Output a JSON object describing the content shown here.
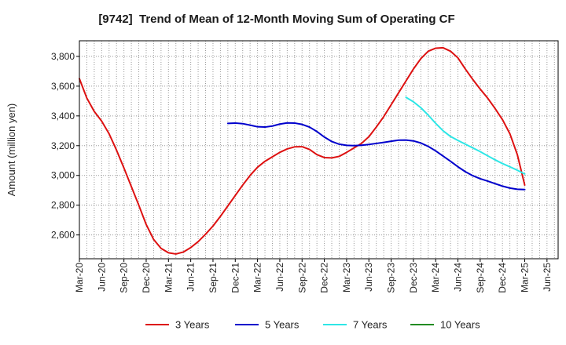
{
  "chart_data": {
    "type": "line",
    "title": "[9742]  Trend of Mean of 12-Month Moving Sum of Operating CF",
    "xlabel": "",
    "ylabel": "Amount (million yen)",
    "ylim": [
      2440,
      3905
    ],
    "xlim_months": [
      0,
      64.5
    ],
    "x_tick_step_months": 3,
    "x_tick_labels": [
      "Mar-20",
      "Jun-20",
      "Sep-20",
      "Dec-20",
      "Mar-21",
      "Jun-21",
      "Sep-21",
      "Dec-21",
      "Mar-22",
      "Jun-22",
      "Sep-22",
      "Dec-22",
      "Mar-23",
      "Jun-23",
      "Sep-23",
      "Dec-23",
      "Mar-24",
      "Jun-24",
      "Sep-24",
      "Dec-24",
      "Mar-25",
      "Jun-25"
    ],
    "y_ticks": [
      2600,
      2800,
      3000,
      3200,
      3400,
      3600,
      3800
    ],
    "y_tick_labels": [
      "2,600",
      "2,800",
      "3,000",
      "3,200",
      "3,400",
      "3,600",
      "3,800"
    ],
    "grid": true,
    "legend_position": "bottom",
    "series": [
      {
        "name": "3 Years",
        "color": "#dd1111",
        "first_month_offset": 0,
        "values": [
          3650,
          3520,
          3430,
          3365,
          3280,
          3170,
          3050,
          2925,
          2800,
          2670,
          2570,
          2510,
          2480,
          2472,
          2485,
          2515,
          2555,
          2605,
          2660,
          2725,
          2795,
          2865,
          2935,
          3000,
          3055,
          3095,
          3125,
          3155,
          3178,
          3192,
          3193,
          3175,
          3140,
          3120,
          3118,
          3128,
          3155,
          3185,
          3215,
          3260,
          3325,
          3395,
          3475,
          3555,
          3635,
          3715,
          3785,
          3835,
          3855,
          3858,
          3835,
          3790,
          3715,
          3645,
          3580,
          3520,
          3450,
          3375,
          3280,
          3140,
          2935
        ]
      },
      {
        "name": "5 Years",
        "color": "#0000cc",
        "first_month_offset": 20,
        "values": [
          3350,
          3352,
          3348,
          3338,
          3327,
          3325,
          3332,
          3345,
          3353,
          3352,
          3343,
          3325,
          3295,
          3258,
          3228,
          3210,
          3202,
          3200,
          3203,
          3208,
          3215,
          3222,
          3230,
          3237,
          3238,
          3232,
          3218,
          3195,
          3165,
          3130,
          3095,
          3058,
          3025,
          2998,
          2978,
          2962,
          2945,
          2928,
          2915,
          2907,
          2905
        ]
      },
      {
        "name": "7 Years",
        "color": "#2ee6e6",
        "first_month_offset": 44,
        "values": [
          3525,
          3495,
          3455,
          3405,
          3350,
          3300,
          3262,
          3235,
          3210,
          3185,
          3160,
          3132,
          3105,
          3080,
          3058,
          3035,
          3010
        ]
      },
      {
        "name": "10 Years",
        "color": "#228b22",
        "first_month_offset": 0,
        "values": []
      }
    ]
  }
}
